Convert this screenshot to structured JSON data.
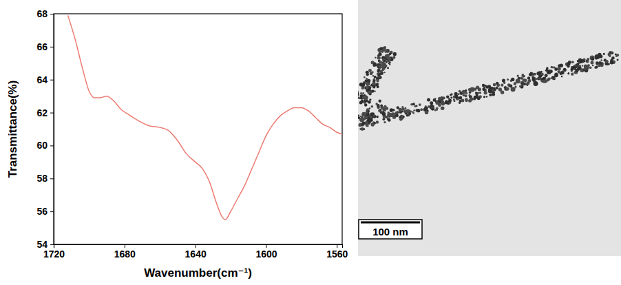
{
  "chart_data": {
    "type": "line",
    "x_label": "Wavenumber(cm⁻¹)",
    "y_label": "Transmittance(%)",
    "x": [
      1712,
      1708,
      1704,
      1700,
      1697,
      1694,
      1690,
      1686,
      1682,
      1678,
      1672,
      1666,
      1660,
      1655,
      1650,
      1645,
      1640,
      1636,
      1632,
      1628,
      1625,
      1623,
      1620,
      1616,
      1612,
      1608,
      1604,
      1600,
      1596,
      1592,
      1588,
      1584,
      1580,
      1576,
      1572,
      1568,
      1564,
      1560,
      1557
    ],
    "values": [
      67.9,
      66.5,
      64.8,
      63.3,
      62.9,
      62.9,
      63.0,
      62.7,
      62.2,
      61.9,
      61.5,
      61.2,
      61.1,
      60.9,
      60.3,
      59.5,
      59.0,
      58.6,
      57.8,
      56.5,
      55.7,
      55.5,
      56.0,
      56.8,
      57.6,
      58.6,
      59.6,
      60.6,
      61.3,
      61.8,
      62.1,
      62.3,
      62.3,
      62.1,
      61.7,
      61.3,
      61.1,
      60.8,
      60.7
    ],
    "color": "#ec7b72",
    "xlim": [
      1720,
      1557
    ],
    "xticks": [
      1720,
      1680,
      1640,
      1600,
      1560
    ],
    "ylim": [
      54,
      68
    ],
    "yticks": [
      54,
      56,
      58,
      60,
      62,
      64,
      66,
      68
    ],
    "grid": false
  },
  "image": {
    "scale_bar": "100 nm"
  }
}
